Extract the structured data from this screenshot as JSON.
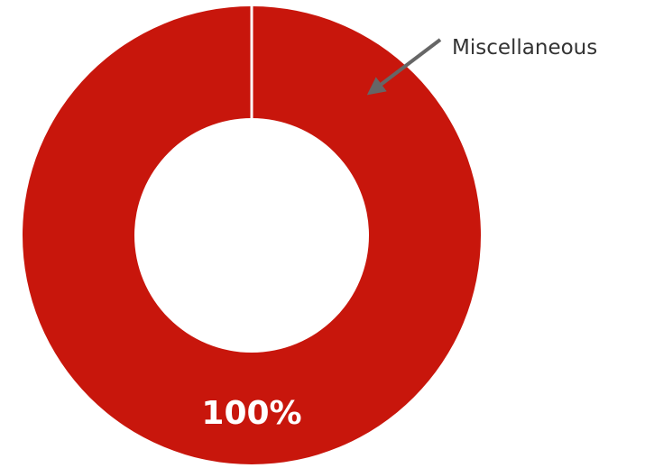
{
  "chart_data": {
    "type": "pie",
    "variant": "donut",
    "slices": [
      {
        "label": "Miscellaneous",
        "value": 100,
        "display": "100%",
        "color": "#c8160c"
      }
    ],
    "annotation": {
      "text": "Miscellaneous",
      "points_to": "Miscellaneous"
    },
    "legend": "none",
    "colors": {
      "separator": "#ffffff",
      "label_text": "#ffffff",
      "annotation_text": "#333333",
      "arrow": "#666666"
    }
  }
}
